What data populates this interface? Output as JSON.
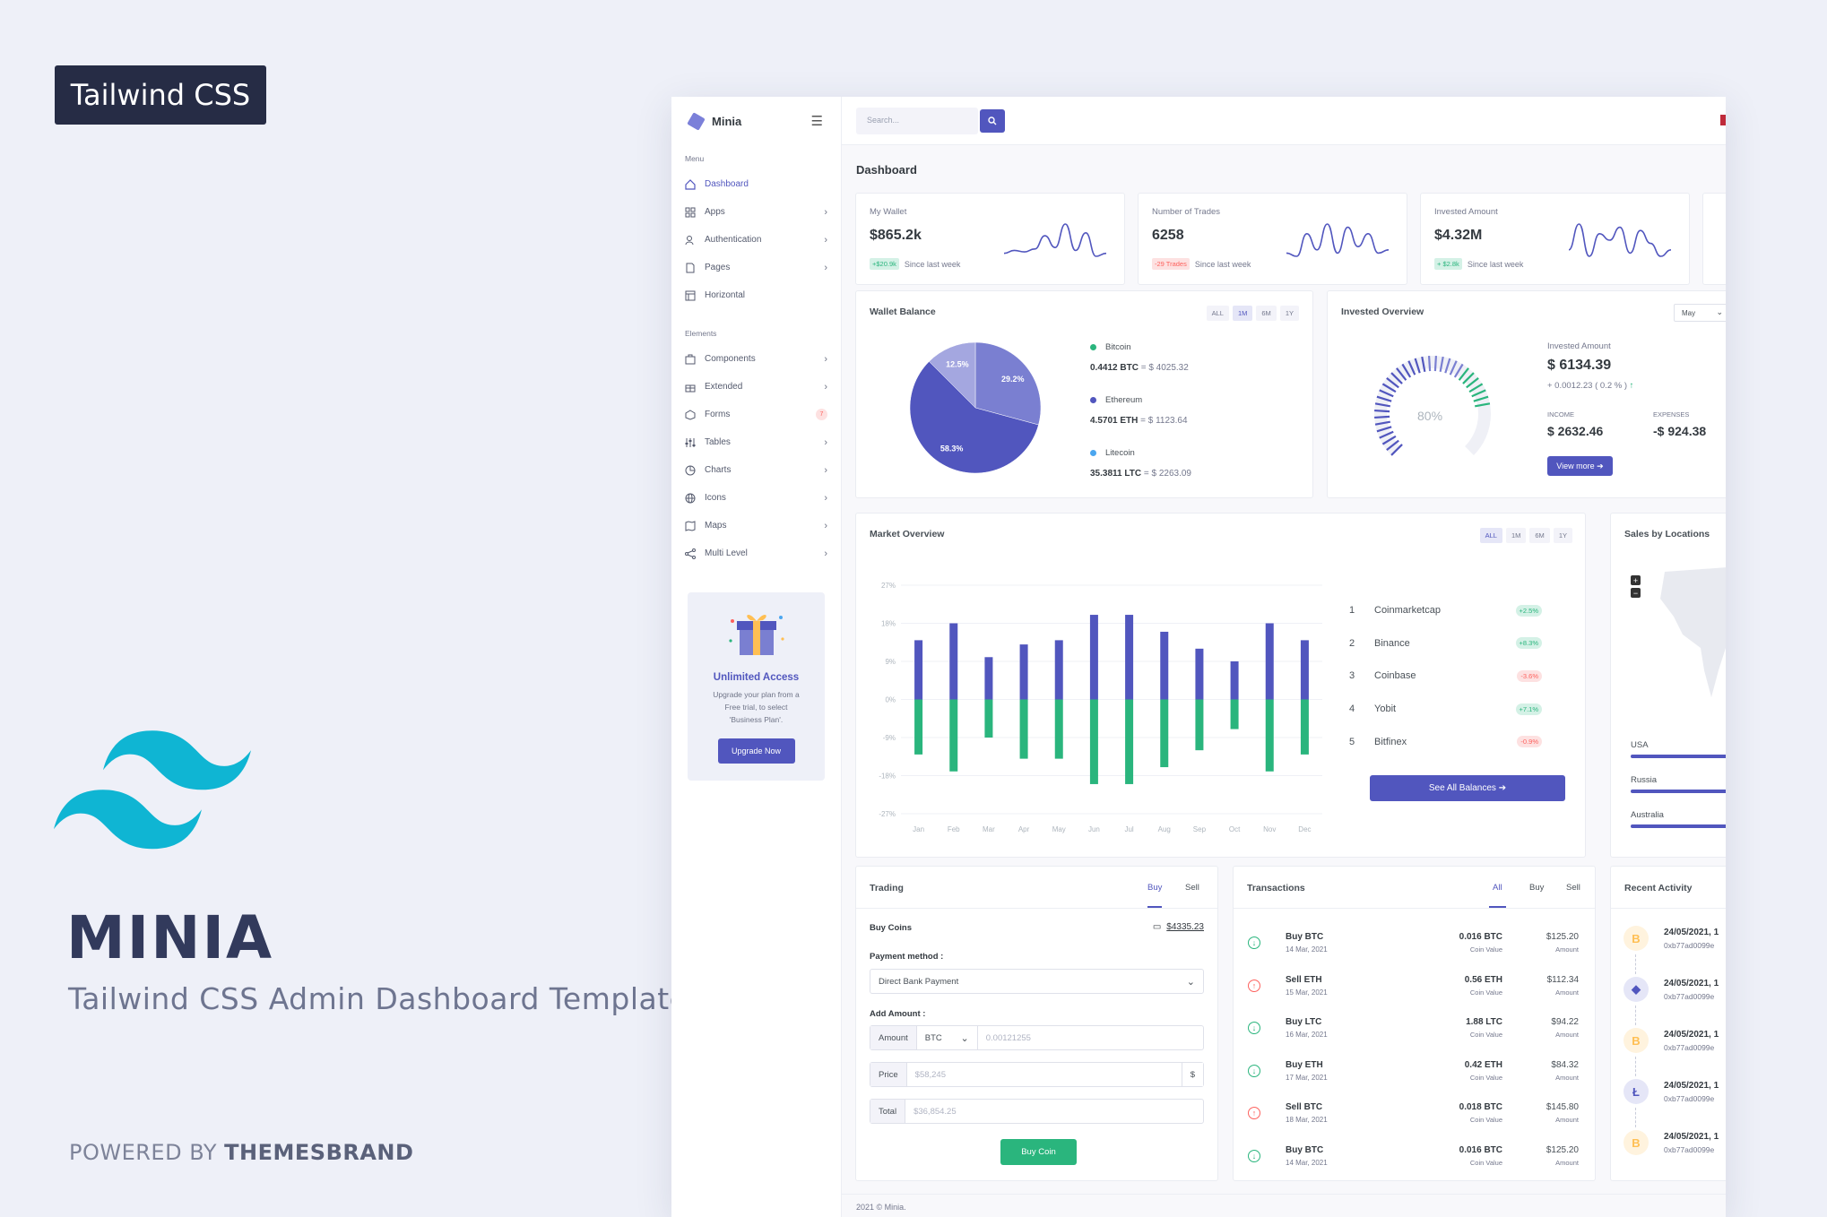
{
  "promo": {
    "badge": "Tailwind CSS",
    "title": "MINIA",
    "subtitle": "Tailwind CSS Admin Dashboard Template",
    "powered_prefix": "POWERED BY",
    "powered_brand": "THEMESBRAND"
  },
  "app": {
    "name": "Minia",
    "search_placeholder": "Search...",
    "page_title": "Dashboard",
    "footer": "2021 © Minia."
  },
  "sidebar": {
    "menu_title": "Menu",
    "menu": [
      {
        "label": "Dashboard",
        "icon": "home-icon"
      },
      {
        "label": "Apps",
        "icon": "grid-icon"
      },
      {
        "label": "Authentication",
        "icon": "users-icon"
      },
      {
        "label": "Pages",
        "icon": "file-icon"
      },
      {
        "label": "Horizontal",
        "icon": "layout-icon"
      }
    ],
    "elements_title": "Elements",
    "elements": [
      {
        "label": "Components",
        "icon": "briefcase-icon"
      },
      {
        "label": "Extended",
        "icon": "gift-icon"
      },
      {
        "label": "Forms",
        "icon": "box-icon",
        "badge": "7"
      },
      {
        "label": "Tables",
        "icon": "sliders-icon"
      },
      {
        "label": "Charts",
        "icon": "pie-chart-icon"
      },
      {
        "label": "Icons",
        "icon": "globe-icon"
      },
      {
        "label": "Maps",
        "icon": "map-icon"
      },
      {
        "label": "Multi Level",
        "icon": "share-icon"
      }
    ],
    "upgrade": {
      "title": "Unlimited Access",
      "desc_1": "Upgrade your plan from a",
      "desc_2": "Free trial, to select",
      "desc_3": "'Business Plan'.",
      "button": "Upgrade Now"
    }
  },
  "stats": [
    {
      "label": "My Wallet",
      "value": "$865.2k",
      "badge": "+$20.9k",
      "trend": "up",
      "since": "Since last week",
      "spark": [
        10,
        12,
        11,
        13,
        22,
        14,
        30,
        12,
        24,
        8,
        10
      ]
    },
    {
      "label": "Number of Trades",
      "value": "6258",
      "badge": "-29 Trades",
      "trend": "down",
      "since": "Since last week",
      "spark": [
        10,
        8,
        22,
        12,
        28,
        10,
        26,
        14,
        22,
        10,
        12
      ]
    },
    {
      "label": "Invested Amount",
      "value": "$4.32M",
      "badge": "+ $2.8k",
      "trend": "up",
      "since": "Since last week",
      "spark": [
        14,
        30,
        10,
        24,
        20,
        28,
        12,
        26,
        18,
        10,
        14
      ]
    }
  ],
  "wallet": {
    "title": "Wallet Balance",
    "tabs": [
      "ALL",
      "1M",
      "6M",
      "1Y"
    ],
    "active_tab": "1M",
    "pie": [
      {
        "label": "58.3%",
        "value": 58.3,
        "color": "#5156be"
      },
      {
        "label": "29.2%",
        "value": 29.2,
        "color": "#7a7fd1"
      },
      {
        "label": "12.5%",
        "value": 12.5,
        "color": "#a4a7e0"
      }
    ],
    "coins": [
      {
        "name": "Bitcoin",
        "color": "#2ab57d",
        "amount": "0.4412 BTC",
        "fiat": "= $ 4025.32"
      },
      {
        "name": "Ethereum",
        "color": "#5156be",
        "amount": "4.5701 ETH",
        "fiat": "= $ 1123.64"
      },
      {
        "name": "Litecoin",
        "color": "#4ba6ef",
        "amount": "35.3811 LTC",
        "fiat": "= $ 2263.09"
      }
    ]
  },
  "invested": {
    "title": "Invested Overview",
    "select": "May",
    "gauge_label": "80%",
    "gauge_value": 80,
    "amount_label": "Invested Amount",
    "amount": "$ 6134.39",
    "change": "+ 0.0012.23 ( 0.2 % )",
    "income_label": "INCOME",
    "income": "$ 2632.46",
    "expenses_label": "EXPENSES",
    "expenses": "-$ 924.38",
    "button": "View more"
  },
  "market": {
    "title": "Market Overview",
    "tabs": [
      "ALL",
      "1M",
      "6M",
      "1Y"
    ],
    "active_tab": "ALL",
    "rankings": [
      {
        "n": "1",
        "name": "Coinmarketcap",
        "change": "+2.5%",
        "trend": "up"
      },
      {
        "n": "2",
        "name": "Binance",
        "change": "+8.3%",
        "trend": "up"
      },
      {
        "n": "3",
        "name": "Coinbase",
        "change": "-3.6%",
        "trend": "down"
      },
      {
        "n": "4",
        "name": "Yobit",
        "change": "+7.1%",
        "trend": "up"
      },
      {
        "n": "5",
        "name": "Bitfinex",
        "change": "-0.9%",
        "trend": "down"
      }
    ],
    "button": "See All Balances"
  },
  "chart_data": {
    "type": "bar",
    "categories": [
      "Jan",
      "Feb",
      "Mar",
      "Apr",
      "May",
      "Jun",
      "Jul",
      "Aug",
      "Sep",
      "Oct",
      "Nov",
      "Dec"
    ],
    "series": [
      {
        "values": [
          14,
          18,
          10,
          13,
          14,
          20,
          20,
          16,
          12,
          9,
          18,
          14
        ],
        "color": "#5156be"
      },
      {
        "values": [
          -13,
          -17,
          -9,
          -14,
          -14,
          -20,
          -20,
          -16,
          -12,
          -7,
          -17,
          -13
        ],
        "color": "#2ab57d"
      }
    ],
    "ylim": [
      -27,
      27
    ],
    "yticks": [
      "27%",
      "18%",
      "9%",
      "0%",
      "-9%",
      "-18%",
      "-27%"
    ],
    "ytick_values": [
      27,
      18,
      9,
      0,
      -9,
      -18,
      -27
    ],
    "stacked": true,
    "grid": true
  },
  "sales": {
    "title": "Sales by Locations",
    "zoom_in": "+",
    "zoom_out": "−",
    "locations": [
      {
        "name": "USA",
        "pct": 100
      },
      {
        "name": "Russia",
        "pct": 100
      },
      {
        "name": "Australia",
        "pct": 100
      }
    ]
  },
  "trading": {
    "title": "Trading",
    "tabs": [
      "Buy",
      "Sell"
    ],
    "active_tab": "Buy",
    "buy_coins": "Buy Coins",
    "balance": "$4335.23",
    "payment_label": "Payment method :",
    "payment_value": "Direct Bank Payment",
    "add_amount": "Add Amount :",
    "amount_addon": "Amount",
    "coin": "BTC",
    "amount_ph": "0.00121255",
    "price_addon": "Price",
    "price_ph": "$58,245",
    "price_suffix": "$",
    "total_addon": "Total",
    "total_ph": "$36,854.25",
    "button": "Buy Coin"
  },
  "transactions": {
    "title": "Transactions",
    "tabs": [
      "All",
      "Buy",
      "Sell"
    ],
    "active_tab": "All",
    "rows": [
      {
        "type": "in",
        "name": "Buy BTC",
        "date": "14 Mar, 2021",
        "qty": "0.016 BTC",
        "qty_sub": "Coin Value",
        "amt": "$125.20",
        "amt_sub": "Amount"
      },
      {
        "type": "out",
        "name": "Sell ETH",
        "date": "15 Mar, 2021",
        "qty": "0.56 ETH",
        "qty_sub": "Coin Value",
        "amt": "$112.34",
        "amt_sub": "Amount"
      },
      {
        "type": "in",
        "name": "Buy LTC",
        "date": "16 Mar, 2021",
        "qty": "1.88 LTC",
        "qty_sub": "Coin Value",
        "amt": "$94.22",
        "amt_sub": "Amount"
      },
      {
        "type": "in",
        "name": "Buy ETH",
        "date": "17 Mar, 2021",
        "qty": "0.42 ETH",
        "qty_sub": "Coin Value",
        "amt": "$84.32",
        "amt_sub": "Amount"
      },
      {
        "type": "out",
        "name": "Sell BTC",
        "date": "18 Mar, 2021",
        "qty": "0.018 BTC",
        "qty_sub": "Coin Value",
        "amt": "$145.80",
        "amt_sub": "Amount"
      },
      {
        "type": "in",
        "name": "Buy BTC",
        "date": "14 Mar, 2021",
        "qty": "0.016 BTC",
        "qty_sub": "Coin Value",
        "amt": "$125.20",
        "amt_sub": "Amount"
      }
    ]
  },
  "activity": {
    "title": "Recent Activity",
    "rows": [
      {
        "coin": "bitcoin",
        "glyph": "B",
        "date": "24/05/2021, 1",
        "hash": "0xb77ad0099e"
      },
      {
        "coin": "ethereum",
        "glyph": "◆",
        "date": "24/05/2021, 1",
        "hash": "0xb77ad0099e"
      },
      {
        "coin": "bitcoin",
        "glyph": "B",
        "date": "24/05/2021, 1",
        "hash": "0xb77ad0099e"
      },
      {
        "coin": "litecoin",
        "glyph": "Ł",
        "date": "24/05/2021, 1",
        "hash": "0xb77ad0099e"
      },
      {
        "coin": "bitcoin",
        "glyph": "B",
        "date": "24/05/2021, 1",
        "hash": "0xb77ad0099e"
      }
    ]
  }
}
